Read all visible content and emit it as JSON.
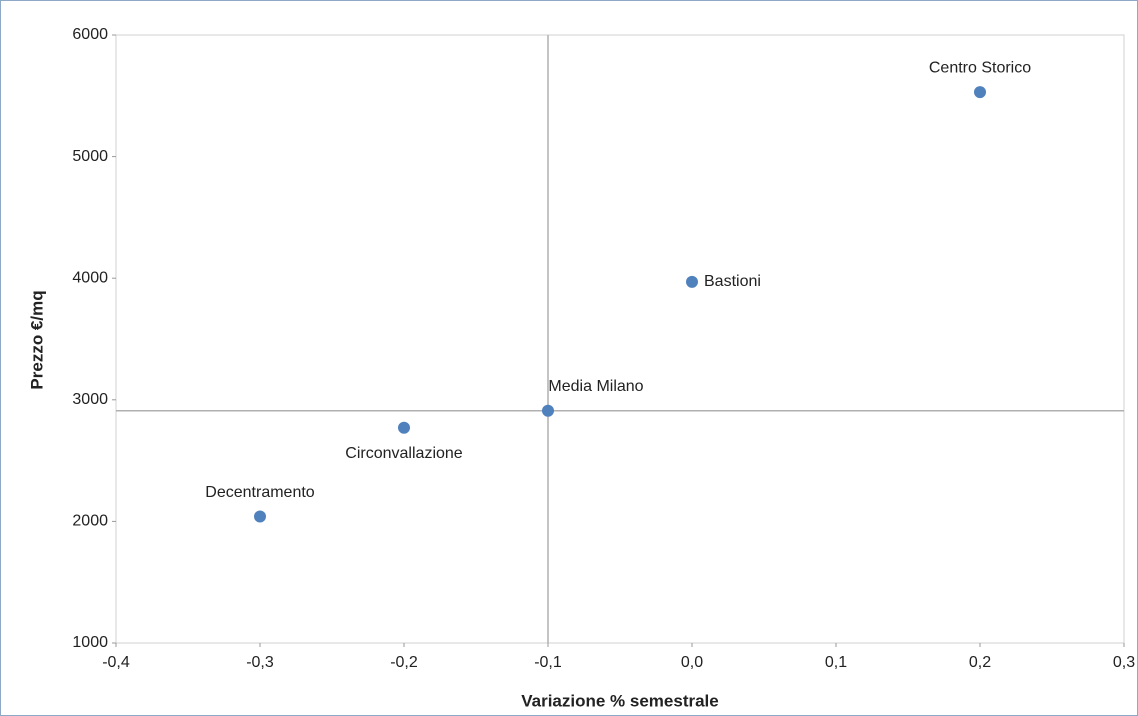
{
  "chart_data": {
    "type": "scatter",
    "x_label": "Variazione % semestrale",
    "y_label": "Prezzo €/mq",
    "x": [
      0.2,
      0.0,
      -0.1,
      -0.2,
      -0.3
    ],
    "y": [
      5530,
      3970,
      2910,
      2770,
      2040
    ],
    "labels": [
      "Centro Storico",
      "Bastioni",
      "Media Milano",
      "Circonvallazione",
      "Decentramento"
    ],
    "label_position": [
      "above",
      "right",
      "above",
      "below",
      "above"
    ],
    "color": "#4f81bd",
    "xlim": [
      -0.4,
      0.3
    ],
    "ylim": [
      1000,
      6000
    ],
    "xticks": [
      {
        "value": -0.4,
        "label": "-0,4"
      },
      {
        "value": -0.3,
        "label": "-0,3"
      },
      {
        "value": -0.2,
        "label": "-0,2"
      },
      {
        "value": -0.1,
        "label": "-0,1"
      },
      {
        "value": 0.0,
        "label": "0,0"
      },
      {
        "value": 0.1,
        "label": "0,1"
      },
      {
        "value": 0.2,
        "label": "0,2"
      },
      {
        "value": 0.3,
        "label": "0,3"
      }
    ],
    "yticks": [
      1000,
      2000,
      3000,
      4000,
      5000,
      6000
    ],
    "crosshair": {
      "x": -0.1,
      "y": 2910
    }
  }
}
